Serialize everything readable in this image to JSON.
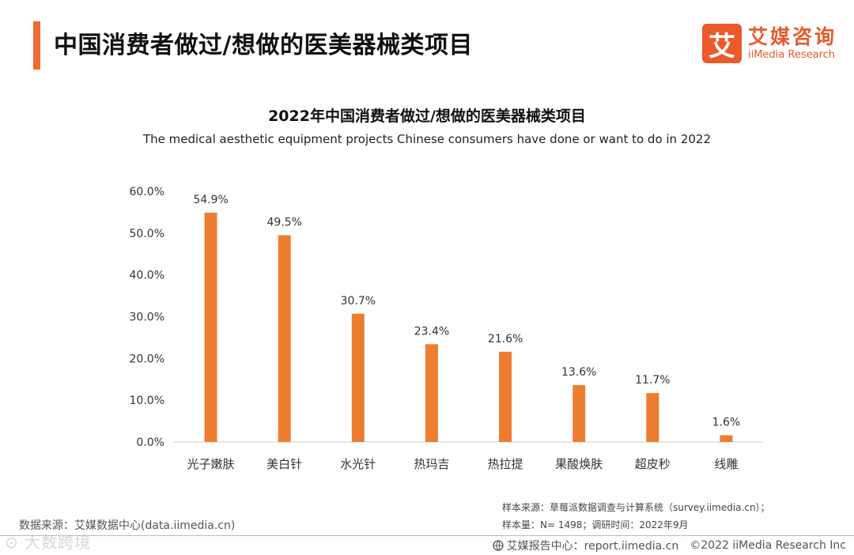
{
  "header": {
    "title": "中国消费者做过/想做的医美器械类项目",
    "brand_logo_char": "艾",
    "brand_cn": "艾媒咨询",
    "brand_en": "iiMedia Research"
  },
  "colors": {
    "accent": "#ee6b33",
    "bar": "#ed7d31",
    "brand": "#e75b2c"
  },
  "chart_data": {
    "type": "bar",
    "title": "2022年中国消费者做过/想做的医美器械类项目",
    "subtitle": "The medical aesthetic equipment projects Chinese consumers have done or want to do in 2022",
    "categories": [
      "光子嫩肤",
      "美白针",
      "水光针",
      "热玛吉",
      "热拉提",
      "果酸焕肤",
      "超皮秒",
      "线雕"
    ],
    "values": [
      54.9,
      49.5,
      30.7,
      23.4,
      21.6,
      13.6,
      11.7,
      1.6
    ],
    "value_labels": [
      "54.9%",
      "49.5%",
      "30.7%",
      "23.4%",
      "21.6%",
      "13.6%",
      "11.7%",
      "1.6%"
    ],
    "yticks": [
      0,
      10,
      20,
      30,
      40,
      50,
      60
    ],
    "ytick_labels": [
      "0.0%",
      "10.0%",
      "20.0%",
      "30.0%",
      "40.0%",
      "50.0%",
      "60.0%"
    ],
    "ylim": [
      0,
      60
    ],
    "xlabel": "",
    "ylabel": "",
    "grid": false
  },
  "footer": {
    "data_source": "数据来源：艾媒数据中心(data.iimedia.cn)",
    "watermark": "⊙ 大数跨境",
    "sample_source": "样本来源：草莓派数据调查与计算系统（survey.iimedia.cn）；",
    "sample_size": "样本量：N= 1498；调研时间：2022年9月",
    "report_center": "艾媒报告中心：report.iimedia.cn",
    "copyright": "©2022  iiMedia Research  Inc"
  }
}
